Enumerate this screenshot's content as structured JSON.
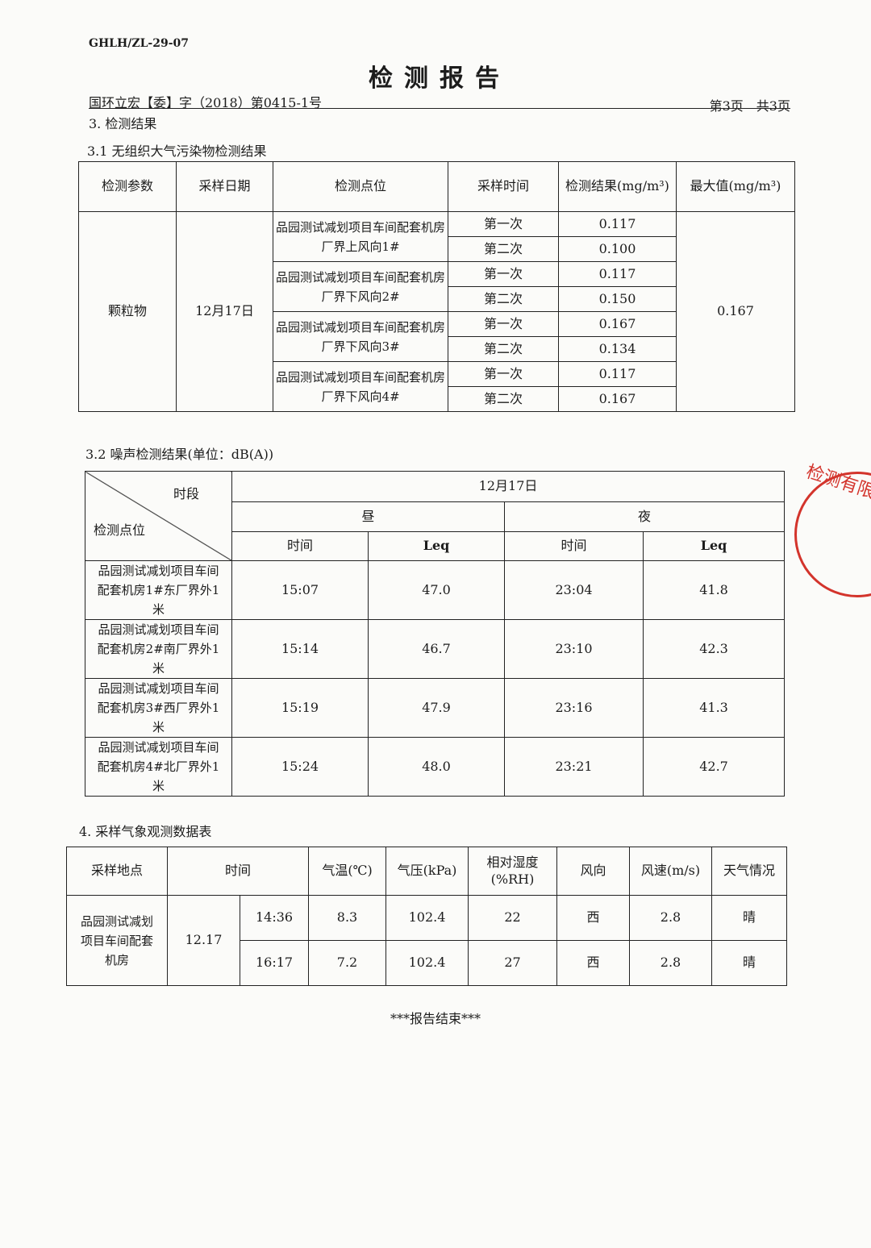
{
  "header": {
    "form_code": "GHLH/ZL-29-07",
    "title": "检测报告",
    "doc_number": "国环立宏【委】字（2018）第0415-1号",
    "page_info": "第3页　共3页"
  },
  "section3": {
    "title": "3. 检测结果"
  },
  "section31": {
    "title": "3.1  无组织大气污染物检测结果",
    "headers": [
      "检测参数",
      "采样日期",
      "检测点位",
      "采样时间",
      "检测结果(mg/m³)",
      "最大值(mg/m³)"
    ],
    "param": "颗粒物",
    "date": "12月17日",
    "max": "0.167",
    "points": [
      {
        "name": "品园测试减划项目车间配套机房厂界上风向1#",
        "samples": [
          {
            "time": "第一次",
            "value": "0.117"
          },
          {
            "time": "第二次",
            "value": "0.100"
          }
        ]
      },
      {
        "name": "品园测试减划项目车间配套机房厂界下风向2#",
        "samples": [
          {
            "time": "第一次",
            "value": "0.117"
          },
          {
            "time": "第二次",
            "value": "0.150"
          }
        ]
      },
      {
        "name": "品园测试减划项目车间配套机房厂界下风向3#",
        "samples": [
          {
            "time": "第一次",
            "value": "0.167"
          },
          {
            "time": "第二次",
            "value": "0.134"
          }
        ]
      },
      {
        "name": "品园测试减划项目车间配套机房厂界下风向4#",
        "samples": [
          {
            "time": "第一次",
            "value": "0.117"
          },
          {
            "time": "第二次",
            "value": "0.167"
          }
        ]
      }
    ]
  },
  "section32": {
    "title": "3.2  噪声检测结果(单位：dB(A))",
    "corner_top": "时段",
    "corner_bottom": "检测点位",
    "date": "12月17日",
    "day": "昼",
    "night": "夜",
    "time": "时间",
    "leq": "Leq",
    "rows": [
      {
        "point": "品园测试减划项目车间配套机房1#东厂界外1米",
        "day_time": "15:07",
        "day_leq": "47.0",
        "night_time": "23:04",
        "night_leq": "41.8"
      },
      {
        "point": "品园测试减划项目车间配套机房2#南厂界外1米",
        "day_time": "15:14",
        "day_leq": "46.7",
        "night_time": "23:10",
        "night_leq": "42.3"
      },
      {
        "point": "品园测试减划项目车间配套机房3#西厂界外1米",
        "day_time": "15:19",
        "day_leq": "47.9",
        "night_time": "23:16",
        "night_leq": "41.3"
      },
      {
        "point": "品园测试减划项目车间配套机房4#北厂界外1米",
        "day_time": "15:24",
        "day_leq": "48.0",
        "night_time": "23:21",
        "night_leq": "42.7"
      }
    ]
  },
  "section4": {
    "title": "4.  采样气象观测数据表",
    "headers": [
      "采样地点",
      "时间",
      "气温(℃)",
      "气压(kPa)",
      "相对湿度(%RH)",
      "风向",
      "风速(m/s)",
      "天气情况"
    ],
    "site": "品园测试减划项目车间配套机房",
    "date": "12.17",
    "rows": [
      {
        "time": "14:36",
        "temp": "8.3",
        "pressure": "102.4",
        "humidity": "22",
        "wind_dir": "西",
        "wind_speed": "2.8",
        "weather": "晴"
      },
      {
        "time": "16:17",
        "temp": "7.2",
        "pressure": "102.4",
        "humidity": "27",
        "wind_dir": "西",
        "wind_speed": "2.8",
        "weather": "晴"
      }
    ]
  },
  "footer": {
    "end": "***报告结束***"
  },
  "stamp": {
    "text": "检测有限公司 专用章",
    "color": "#d3342c"
  }
}
